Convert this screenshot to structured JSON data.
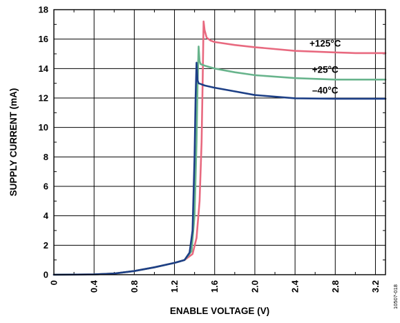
{
  "figure_code": "10507-018",
  "chart_data": {
    "type": "line",
    "title": "",
    "xlabel": "ENABLE VOLTAGE (V)",
    "ylabel": "SUPPLY CURRENT (mA)",
    "xlim": [
      0,
      3.3
    ],
    "ylim": [
      0,
      18
    ],
    "x_ticks": [
      0,
      0.4,
      0.8,
      1.2,
      1.6,
      2.0,
      2.4,
      2.8,
      3.2
    ],
    "x_tick_labels": [
      "0",
      "0.4",
      "0.8",
      "1.2",
      "1.6",
      "2.0",
      "2.4",
      "2.8",
      "3.2"
    ],
    "y_ticks": [
      0,
      2,
      4,
      6,
      8,
      10,
      12,
      14,
      16,
      18
    ],
    "y_tick_labels": [
      "0",
      "2",
      "4",
      "6",
      "8",
      "10",
      "12",
      "14",
      "16",
      "18"
    ],
    "x_minor_ticks": [
      0.2,
      0.6,
      1.0,
      1.4,
      1.8,
      2.2,
      2.6,
      3.0
    ],
    "y_minor_ticks": [
      1,
      3,
      5,
      7,
      9,
      11,
      13,
      15,
      17
    ],
    "grid": true,
    "series": [
      {
        "name": "+125°C",
        "color": "#e8697f",
        "x": [
          0,
          0.4,
          0.6,
          0.8,
          1.0,
          1.2,
          1.3,
          1.38,
          1.42,
          1.45,
          1.47,
          1.48,
          1.49,
          1.5,
          1.52,
          1.56,
          1.6,
          1.8,
          2.0,
          2.4,
          2.8,
          3.0,
          3.3
        ],
        "y": [
          0,
          0.02,
          0.08,
          0.25,
          0.5,
          0.8,
          1.0,
          1.4,
          2.5,
          5.0,
          9.0,
          13.0,
          17.2,
          16.6,
          16.1,
          15.9,
          15.8,
          15.6,
          15.45,
          15.2,
          15.1,
          15.05,
          15.05
        ]
      },
      {
        "name": "+25°C",
        "color": "#68b48c",
        "x": [
          0,
          0.4,
          0.6,
          0.8,
          1.0,
          1.2,
          1.3,
          1.37,
          1.4,
          1.42,
          1.43,
          1.44,
          1.45,
          1.46,
          1.5,
          1.6,
          1.8,
          2.0,
          2.4,
          2.8,
          3.0,
          3.3
        ],
        "y": [
          0,
          0.02,
          0.08,
          0.25,
          0.5,
          0.8,
          1.0,
          1.6,
          4.0,
          9.0,
          13.0,
          15.5,
          14.5,
          14.3,
          14.2,
          14.0,
          13.75,
          13.55,
          13.35,
          13.25,
          13.25,
          13.25
        ]
      },
      {
        "name": "–40°C",
        "color": "#1d3f86",
        "x": [
          0,
          0.4,
          0.6,
          0.8,
          1.0,
          1.2,
          1.3,
          1.35,
          1.38,
          1.4,
          1.41,
          1.42,
          1.43,
          1.44,
          1.46,
          1.5,
          1.6,
          1.8,
          2.0,
          2.4,
          2.8,
          3.0,
          3.3
        ],
        "y": [
          0,
          0.02,
          0.08,
          0.25,
          0.5,
          0.8,
          1.0,
          1.5,
          3.0,
          8.0,
          12.0,
          14.4,
          13.2,
          13.0,
          12.95,
          12.85,
          12.7,
          12.45,
          12.2,
          11.98,
          11.95,
          11.95,
          11.95
        ]
      }
    ]
  }
}
